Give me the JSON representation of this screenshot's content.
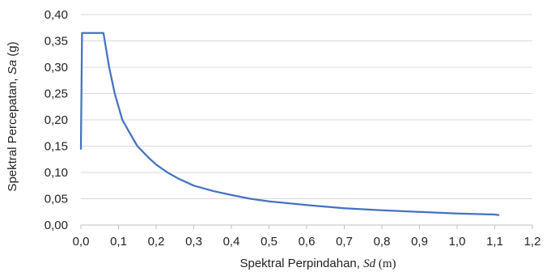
{
  "chart_data": {
    "type": "line",
    "xlabel": {
      "prefix": "Spektral Perpindahan, ",
      "symbol": "Sd",
      "unit": " (m)"
    },
    "ylabel": {
      "prefix": "Spektral Percepatan, ",
      "symbol": "Sa",
      "unit": " (g)"
    },
    "xlim": [
      0.0,
      1.2
    ],
    "ylim": [
      0.0,
      0.4
    ],
    "x_ticks": [
      "0,0",
      "0,1",
      "0,2",
      "0,3",
      "0,4",
      "0,5",
      "0,6",
      "0,7",
      "0,8",
      "0,9",
      "1,0",
      "1,1",
      "1,2"
    ],
    "y_ticks": [
      "0,00",
      "0,05",
      "0,10",
      "0,15",
      "0,20",
      "0,25",
      "0,30",
      "0,35",
      "0,40"
    ],
    "grid": "horizontal",
    "legend": "none",
    "series": [
      {
        "color": "#4472C4",
        "points": [
          [
            0.0,
            0.145
          ],
          [
            0.003,
            0.365
          ],
          [
            0.06,
            0.365
          ],
          [
            0.075,
            0.3
          ],
          [
            0.09,
            0.25
          ],
          [
            0.11,
            0.2
          ],
          [
            0.13,
            0.175
          ],
          [
            0.15,
            0.15
          ],
          [
            0.18,
            0.128
          ],
          [
            0.2,
            0.115
          ],
          [
            0.23,
            0.1
          ],
          [
            0.26,
            0.088
          ],
          [
            0.3,
            0.075
          ],
          [
            0.35,
            0.065
          ],
          [
            0.4,
            0.057
          ],
          [
            0.45,
            0.05
          ],
          [
            0.5,
            0.045
          ],
          [
            0.6,
            0.038
          ],
          [
            0.7,
            0.032
          ],
          [
            0.8,
            0.028
          ],
          [
            0.9,
            0.025
          ],
          [
            1.0,
            0.022
          ],
          [
            1.05,
            0.021
          ],
          [
            1.1,
            0.02
          ],
          [
            1.11,
            0.019
          ]
        ]
      }
    ]
  }
}
